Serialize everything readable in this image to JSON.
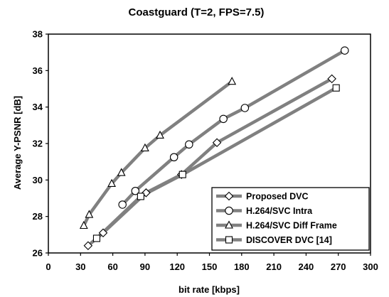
{
  "chart_data": {
    "type": "line",
    "title": "Coastguard (T=2, FPS=7.5)",
    "xlabel": "bit rate [kbps]",
    "ylabel": "Average Y-PSNR [dB]",
    "xlim": [
      0,
      300
    ],
    "ylim": [
      26,
      38
    ],
    "xticks": [
      "0",
      "30",
      "60",
      "90",
      "120",
      "150",
      "180",
      "210",
      "240",
      "270",
      "300"
    ],
    "yticks": [
      "26",
      "28",
      "30",
      "32",
      "34",
      "36",
      "38"
    ],
    "grid": false,
    "legend_position": "bottom-right",
    "line_color": "#808080",
    "series": [
      {
        "name": "Proposed DVC",
        "marker": "diamond",
        "x": [
          37,
          51,
          91,
          124,
          157,
          264
        ],
        "y": [
          26.4,
          27.1,
          29.3,
          30.3,
          32.05,
          35.55
        ]
      },
      {
        "name": "H.264/SVC Intra",
        "marker": "circle",
        "x": [
          69,
          81,
          117,
          131,
          163,
          183,
          276
        ],
        "y": [
          28.65,
          29.4,
          31.25,
          31.95,
          33.35,
          33.95,
          37.1
        ]
      },
      {
        "name": "H.264/SVC Diff Frame",
        "marker": "triangle",
        "x": [
          33,
          38,
          59,
          68,
          90,
          104,
          171
        ],
        "y": [
          27.5,
          28.1,
          29.8,
          30.4,
          31.75,
          32.45,
          35.4
        ]
      },
      {
        "name": "DISCOVER DVC [14]",
        "marker": "square",
        "x": [
          45,
          86,
          125,
          268
        ],
        "y": [
          26.8,
          29.1,
          30.3,
          35.05
        ]
      }
    ]
  }
}
